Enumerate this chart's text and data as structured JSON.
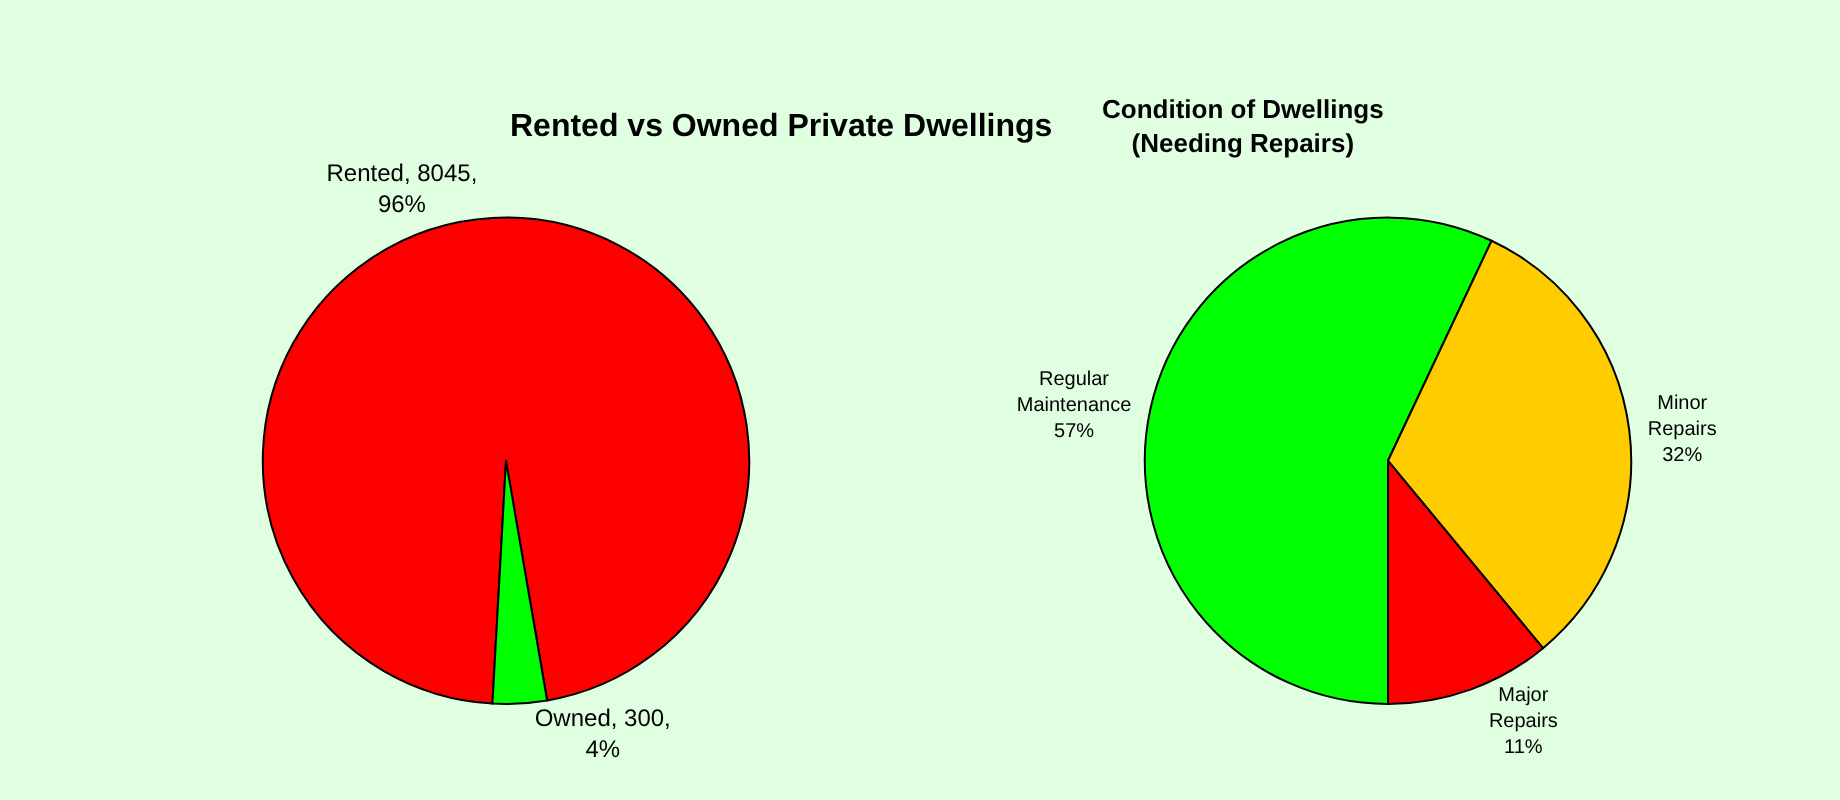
{
  "chart_data": [
    {
      "type": "pie",
      "title": "Rented vs Owned Private Dwellings",
      "categories": [
        "Rented",
        "Owned"
      ],
      "values": [
        8045,
        300
      ],
      "colors": [
        "#ff0000",
        "#00ff00"
      ],
      "value_labels": [
        "8045,\n96%",
        "300,\n4%"
      ],
      "legend": false
    },
    {
      "type": "pie",
      "title": "Condition of Dwellings\n(Needing Repairs)",
      "categories": [
        "Regular\nMaintenance",
        "Minor\nRepairs",
        "Major\nRepairs"
      ],
      "values": [
        57,
        32,
        11
      ],
      "colors": [
        "#00ff00",
        "#ffcc00",
        "#ff0000"
      ],
      "value_labels": [
        "57%",
        "32%",
        "11%"
      ],
      "legend": false
    }
  ]
}
